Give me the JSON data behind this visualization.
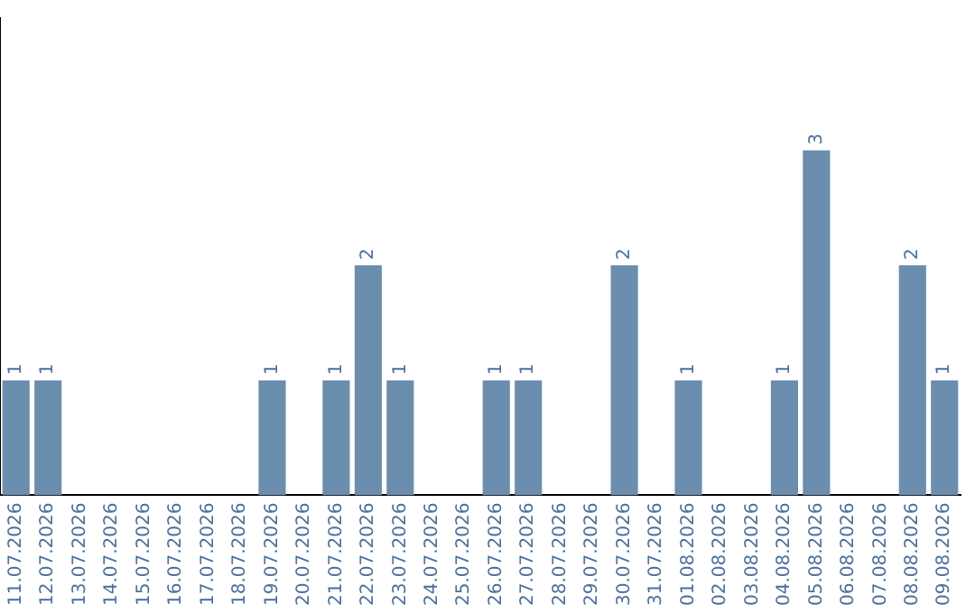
{
  "chart_data": {
    "type": "bar",
    "categories": [
      "11.07.2026",
      "12.07.2026",
      "13.07.2026",
      "14.07.2026",
      "15.07.2026",
      "16.07.2026",
      "17.07.2026",
      "18.07.2026",
      "19.07.2026",
      "20.07.2026",
      "21.07.2026",
      "22.07.2026",
      "23.07.2026",
      "24.07.2026",
      "25.07.2026",
      "26.07.2026",
      "27.07.2026",
      "28.07.2026",
      "29.07.2026",
      "30.07.2026",
      "31.07.2026",
      "01.08.2026",
      "02.08.2026",
      "03.08.2026",
      "04.08.2026",
      "05.08.2026",
      "06.08.2026",
      "07.08.2026",
      "08.08.2026",
      "09.08.2026"
    ],
    "values": [
      1,
      1,
      null,
      null,
      null,
      null,
      null,
      null,
      1,
      null,
      1,
      2,
      1,
      null,
      null,
      1,
      1,
      null,
      null,
      2,
      null,
      1,
      null,
      null,
      1,
      3,
      null,
      null,
      2,
      1
    ],
    "color": "#6b8eae",
    "ylim": [
      0,
      4.15
    ],
    "tick_labels": "x",
    "grid": false,
    "legend": false,
    "data_labels": true
  }
}
